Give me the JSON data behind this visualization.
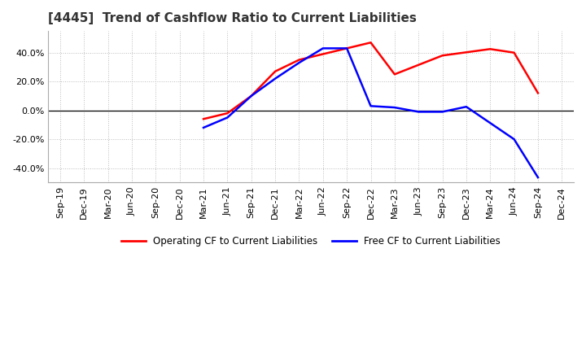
{
  "title": "[4445]  Trend of Cashflow Ratio to Current Liabilities",
  "x_labels": [
    "Sep-19",
    "Dec-19",
    "Mar-20",
    "Jun-20",
    "Sep-20",
    "Dec-20",
    "Mar-21",
    "Jun-21",
    "Sep-21",
    "Dec-21",
    "Mar-22",
    "Jun-22",
    "Sep-22",
    "Dec-22",
    "Mar-23",
    "Jun-23",
    "Sep-23",
    "Dec-23",
    "Mar-24",
    "Jun-24",
    "Sep-24",
    "Dec-24"
  ],
  "op_x": [
    6,
    7,
    8,
    9,
    10,
    11,
    12,
    13,
    14,
    16,
    18,
    19,
    20
  ],
  "op_y": [
    -6.0,
    -2.0,
    10.0,
    27.0,
    35.0,
    39.0,
    43.0,
    47.0,
    25.0,
    38.0,
    42.5,
    40.0,
    12.0
  ],
  "fr_x": [
    6,
    7,
    8,
    9,
    10,
    11,
    12,
    13,
    14,
    15,
    16,
    17,
    19,
    20
  ],
  "fr_y": [
    -12.0,
    -5.0,
    10.0,
    22.0,
    33.0,
    43.0,
    43.0,
    3.0,
    2.0,
    -1.0,
    -1.0,
    2.5,
    -20.0,
    -46.5
  ],
  "ylim": [
    -50,
    55
  ],
  "yticks": [
    -40.0,
    -20.0,
    0.0,
    20.0,
    40.0
  ],
  "operating_color": "#FF0000",
  "free_color": "#0000FF",
  "background_color": "#FFFFFF",
  "grid_color": "#BBBBBB",
  "legend_labels": [
    "Operating CF to Current Liabilities",
    "Free CF to Current Liabilities"
  ]
}
